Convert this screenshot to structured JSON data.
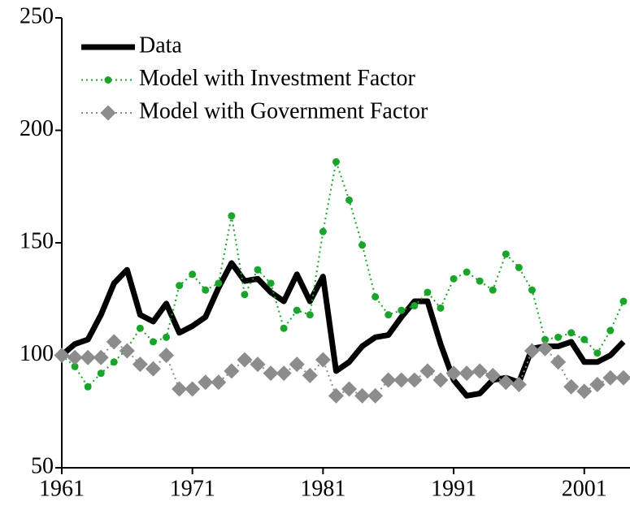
{
  "chart_data": {
    "type": "line",
    "x": [
      1961,
      1962,
      1963,
      1964,
      1965,
      1966,
      1967,
      1968,
      1969,
      1970,
      1971,
      1972,
      1973,
      1974,
      1975,
      1976,
      1977,
      1978,
      1979,
      1980,
      1981,
      1982,
      1983,
      1984,
      1985,
      1986,
      1987,
      1988,
      1989,
      1990,
      1991,
      1992,
      1993,
      1994,
      1995,
      1996,
      1997,
      1998,
      1999,
      2000,
      2001,
      2002,
      2003,
      2004
    ],
    "series": [
      {
        "name": "Data",
        "color": "#000000",
        "style": "solid",
        "values": [
          100,
          105,
          107,
          118,
          132,
          138,
          118,
          115,
          123,
          110,
          113,
          117,
          130,
          141,
          133,
          134,
          128,
          124,
          136,
          124,
          135,
          93,
          97,
          104,
          108,
          109,
          117,
          124,
          124,
          105,
          89,
          82,
          83,
          89,
          90,
          88,
          103,
          104,
          104,
          106,
          97,
          97,
          100,
          106
        ]
      },
      {
        "name": "Model with Investment Factor",
        "color": "#1aa52a",
        "style": "dotted",
        "marker": "circle",
        "values": [
          100,
          95,
          86,
          92,
          97,
          103,
          112,
          106,
          108,
          131,
          136,
          129,
          132,
          162,
          127,
          138,
          132,
          112,
          120,
          118,
          155,
          186,
          169,
          149,
          126,
          118,
          120,
          122,
          128,
          121,
          134,
          137,
          133,
          129,
          145,
          139,
          129,
          107,
          108,
          110,
          107,
          101,
          111,
          124
        ]
      },
      {
        "name": "Model with Government Factor",
        "color": "#8c8c8c",
        "style": "dotted",
        "marker": "diamond",
        "values": [
          100,
          99,
          99,
          99,
          106,
          102,
          96,
          94,
          100,
          85,
          85,
          88,
          88,
          93,
          98,
          96,
          92,
          92,
          96,
          91,
          98,
          82,
          85,
          82,
          82,
          89,
          89,
          89,
          93,
          89,
          92,
          92,
          93,
          91,
          88,
          87,
          102,
          103,
          97,
          86,
          84,
          87,
          90,
          90
        ]
      }
    ],
    "xlim": [
      1961,
      2004.5
    ],
    "xticks": [
      1961,
      1971,
      1981,
      1991,
      2001
    ],
    "ylim": [
      50,
      250
    ],
    "yticks": [
      50,
      100,
      150,
      200,
      250
    ],
    "grid": false,
    "legend": "upper left"
  }
}
